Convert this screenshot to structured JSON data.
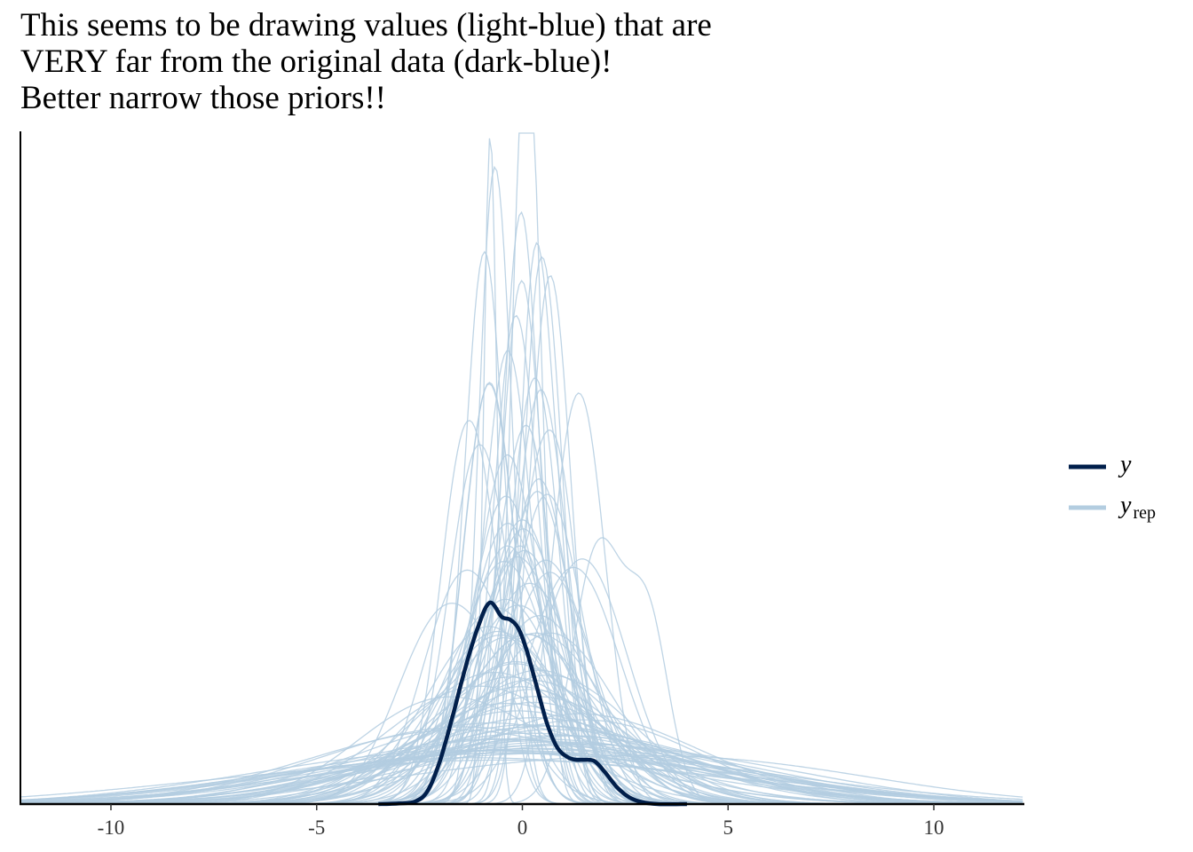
{
  "chart_data": {
    "type": "line",
    "title_lines": [
      "This seems to be drawing values (light-blue) that are",
      "VERY far from the original data (dark-blue)!",
      "Better narrow those priors!!"
    ],
    "xlabel": "",
    "ylabel": "",
    "xlim": [
      -12.2,
      12.2
    ],
    "ylim": [
      0,
      1.0
    ],
    "x_ticks": [
      -10,
      -5,
      0,
      5,
      10
    ],
    "x_tick_labels": [
      "-10",
      "-5",
      "0",
      "5",
      "10"
    ],
    "y_axis_ticks": "none",
    "grid": false,
    "legend": {
      "placement": "right",
      "entries": [
        {
          "label": "y",
          "subscript": "",
          "color": "#011f4b"
        },
        {
          "label": "y",
          "subscript": "rep",
          "color": "#b3cde0"
        }
      ]
    },
    "series": [
      {
        "role": "observed",
        "color": "#011f4b",
        "x": [
          -3.5,
          -3.0,
          -2.6,
          -2.3,
          -2.0,
          -1.7,
          -1.4,
          -1.1,
          -0.8,
          -0.5,
          -0.3,
          -0.1,
          0.1,
          0.35,
          0.6,
          0.85,
          1.1,
          1.3,
          1.5,
          1.75,
          2.0,
          2.3,
          2.6,
          2.9,
          3.3,
          4.0
        ],
        "y": [
          0.0,
          0.001,
          0.004,
          0.02,
          0.065,
          0.13,
          0.2,
          0.26,
          0.3,
          0.279,
          0.275,
          0.262,
          0.23,
          0.175,
          0.12,
          0.084,
          0.07,
          0.066,
          0.066,
          0.064,
          0.048,
          0.025,
          0.01,
          0.003,
          0.0,
          0.0
        ]
      }
    ],
    "replicates": {
      "count": 100,
      "color": "#b3cde0",
      "note_peak_max_x": -0.78,
      "note_peak_max_y": 1.0
    }
  }
}
